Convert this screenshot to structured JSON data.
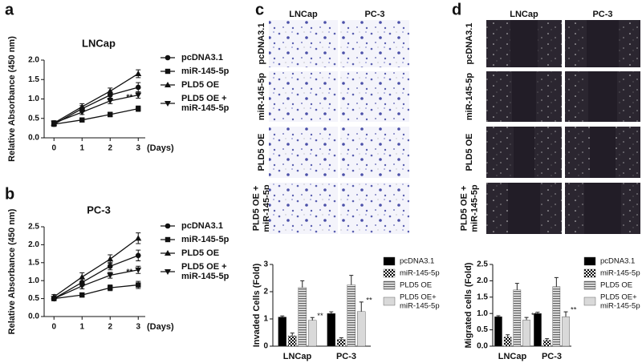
{
  "chart_data": [
    {
      "type": "line",
      "panel": "a",
      "title": "LNCap",
      "x_label": "(Days)",
      "y_label": "Relative Absorbance (450 nm)",
      "x": [
        0,
        1,
        2,
        3
      ],
      "xlim": [
        -0.35,
        3.25
      ],
      "xticks": [
        0,
        1,
        2,
        3
      ],
      "ylim": [
        0,
        2
      ],
      "yticks": [
        {
          "value": 0,
          "label": "0.0"
        },
        0.5,
        {
          "value": 1,
          "label": "1.0"
        },
        1.5,
        {
          "value": 2,
          "label": "2.0"
        }
      ],
      "annotation": "**",
      "series": [
        {
          "name": "pcDNA3.1",
          "color": "#111111",
          "marker": "circle",
          "values": [
            0.35,
            0.75,
            1.1,
            1.3
          ],
          "errors": [
            0.05,
            0.08,
            0.08,
            0.12
          ]
        },
        {
          "name": "miR-145-5p",
          "color": "#111111",
          "marker": "square",
          "values": [
            0.35,
            0.46,
            0.6,
            0.75
          ],
          "errors": [
            0.05,
            0.05,
            0.06,
            0.07
          ]
        },
        {
          "name": "PLD5 OE",
          "color": "#111111",
          "marker": "triangle",
          "values": [
            0.38,
            0.8,
            1.2,
            1.65
          ],
          "errors": [
            0.06,
            0.08,
            0.08,
            0.1
          ]
        },
        {
          "name": "PLD5 OE +\nmiR-145-5p",
          "color": "#111111",
          "marker": "triangle-down",
          "values": [
            0.38,
            0.66,
            0.95,
            1.1
          ],
          "errors": [
            0.05,
            0.06,
            0.07,
            0.08
          ]
        }
      ]
    },
    {
      "type": "line",
      "panel": "b",
      "title": "PC-3",
      "x_label": "(Days)",
      "y_label": "Relative Absorbance (450 nm)",
      "x": [
        0,
        1,
        2,
        3
      ],
      "xlim": [
        -0.35,
        3.25
      ],
      "xticks": [
        0,
        1,
        2,
        3
      ],
      "ylim": [
        0,
        2.5
      ],
      "yticks": [
        {
          "value": 0,
          "label": "0.0"
        },
        0.5,
        {
          "value": 1,
          "label": "1.0"
        },
        1.5,
        {
          "value": 2,
          "label": "2.0"
        },
        2.5
      ],
      "annotation": "**",
      "series": [
        {
          "name": "pcDNA3.1",
          "color": "#111111",
          "marker": "circle",
          "values": [
            0.5,
            0.95,
            1.4,
            1.7
          ],
          "errors": [
            0.06,
            0.1,
            0.1,
            0.15
          ]
        },
        {
          "name": "miR-145-5p",
          "color": "#111111",
          "marker": "square",
          "values": [
            0.5,
            0.6,
            0.8,
            0.88
          ],
          "errors": [
            0.05,
            0.06,
            0.08,
            0.1
          ]
        },
        {
          "name": "PLD5 OE",
          "color": "#111111",
          "marker": "triangle",
          "values": [
            0.55,
            1.1,
            1.6,
            2.18
          ],
          "errors": [
            0.06,
            0.12,
            0.12,
            0.15
          ]
        },
        {
          "name": "PLD5 OE +\nmiR-145-5p",
          "color": "#111111",
          "marker": "triangle-down",
          "values": [
            0.5,
            0.85,
            1.15,
            1.3
          ],
          "errors": [
            0.05,
            0.08,
            0.08,
            0.1
          ]
        }
      ]
    },
    {
      "type": "bar",
      "panel": "c",
      "y_label": "Invaded Cells (Fold)",
      "categories": [
        "LNCap",
        "PC-3"
      ],
      "ylim": [
        0,
        3
      ],
      "yticks": [
        0,
        1,
        2,
        3
      ],
      "annotations": [
        "**",
        "**"
      ],
      "series": [
        {
          "name": "pcDNA3.1",
          "color": "#000000",
          "fill_style": "solid",
          "values": [
            1.07,
            1.2
          ],
          "errors": [
            0.04,
            0.06
          ]
        },
        {
          "name": "miR-145-5p",
          "color": "#000000",
          "fill_style": "checker",
          "values": [
            0.38,
            0.25
          ],
          "errors": [
            0.1,
            0.06
          ]
        },
        {
          "name": "PLD5 OE",
          "color": "#777777",
          "fill_style": "stripes",
          "values": [
            2.15,
            2.25
          ],
          "errors": [
            0.25,
            0.35
          ]
        },
        {
          "name": "PLD5 OE+\nmiR-145-5p",
          "color": "#d9d9d9",
          "fill_style": "solid",
          "values": [
            0.95,
            1.27
          ],
          "errors": [
            0.1,
            0.35
          ]
        }
      ]
    },
    {
      "type": "bar",
      "panel": "d",
      "y_label": "Migrated cells (Fold)",
      "categories": [
        "LNCap",
        "PC-3"
      ],
      "ylim": [
        0,
        2.5
      ],
      "yticks": [
        {
          "value": 0,
          "label": "0.0"
        },
        0.5,
        {
          "value": 1,
          "label": "1.0"
        },
        1.5,
        {
          "value": 2,
          "label": "2.0"
        },
        2.5
      ],
      "annotations": [
        "**",
        "**"
      ],
      "series": [
        {
          "name": "pcDNA3.1",
          "color": "#000000",
          "fill_style": "solid",
          "values": [
            0.9,
            1.0
          ],
          "errors": [
            0.03,
            0.04
          ]
        },
        {
          "name": "miR-145-5p",
          "color": "#000000",
          "fill_style": "checker",
          "values": [
            0.28,
            0.18
          ],
          "errors": [
            0.07,
            0.05
          ]
        },
        {
          "name": "PLD5 OE",
          "color": "#777777",
          "fill_style": "stripes",
          "values": [
            1.72,
            1.82
          ],
          "errors": [
            0.2,
            0.28
          ]
        },
        {
          "name": "PLD5 OE+\nmiR-145-5p",
          "color": "#d9d9d9",
          "fill_style": "solid",
          "values": [
            0.8,
            0.9
          ],
          "errors": [
            0.08,
            0.15
          ]
        }
      ]
    }
  ],
  "micrographs": [
    {
      "panel": "c",
      "columns": [
        "LNCap",
        "PC-3"
      ],
      "rows": [
        "pcDNA3.1",
        "miR-145-5p",
        "PLD5 OE",
        "PLD5 OE +\nmiR-145-5p"
      ]
    },
    {
      "panel": "d",
      "columns": [
        "LNCap",
        "PC-3"
      ],
      "rows": [
        "pcDNA3.1",
        "miR-145-5p",
        "PLD5 OE",
        "PLD5 OE +\nmiR-145-5p"
      ]
    }
  ]
}
